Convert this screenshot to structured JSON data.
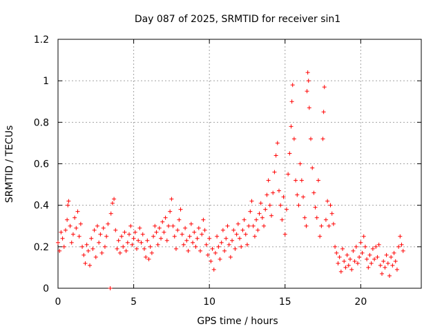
{
  "chart_data": {
    "type": "scatter",
    "title": "Day 087 of 2025, SRMTID for receiver sin1",
    "xlabel": "GPS time / hours",
    "ylabel": "SRMTID / TECUs",
    "xlim": [
      0,
      24
    ],
    "ylim": [
      0,
      1.2
    ],
    "x_ticks": [
      0,
      5,
      10,
      15,
      20
    ],
    "x_tick_labels": [
      "0",
      "5",
      "10",
      "15",
      "20"
    ],
    "y_ticks": [
      0,
      0.2,
      0.4,
      0.6,
      0.8,
      1,
      1.2
    ],
    "y_tick_labels": [
      "0",
      "0.2",
      "0.4",
      "0.6",
      "0.8",
      "1",
      "1.2"
    ],
    "grid": true,
    "marker": "plus",
    "color": "#ff0000",
    "series": [
      {
        "name": "SRMTID",
        "points": [
          [
            0.0,
            0.22
          ],
          [
            0.1,
            0.18
          ],
          [
            0.2,
            0.27
          ],
          [
            0.3,
            0.24
          ],
          [
            0.4,
            0.2
          ],
          [
            0.5,
            0.28
          ],
          [
            0.6,
            0.33
          ],
          [
            0.65,
            0.4
          ],
          [
            0.7,
            0.42
          ],
          [
            0.8,
            0.3
          ],
          [
            0.9,
            0.22
          ],
          [
            1.0,
            0.26
          ],
          [
            1.1,
            0.34
          ],
          [
            1.2,
            0.29
          ],
          [
            1.3,
            0.37
          ],
          [
            1.4,
            0.25
          ],
          [
            1.5,
            0.31
          ],
          [
            1.6,
            0.2
          ],
          [
            1.7,
            0.16
          ],
          [
            1.8,
            0.12
          ],
          [
            1.9,
            0.21
          ],
          [
            2.0,
            0.18
          ],
          [
            2.1,
            0.11
          ],
          [
            2.2,
            0.24
          ],
          [
            2.3,
            0.19
          ],
          [
            2.4,
            0.28
          ],
          [
            2.5,
            0.15
          ],
          [
            2.6,
            0.3
          ],
          [
            2.7,
            0.22
          ],
          [
            2.8,
            0.26
          ],
          [
            2.9,
            0.17
          ],
          [
            3.0,
            0.29
          ],
          [
            3.1,
            0.2
          ],
          [
            3.2,
            0.25
          ],
          [
            3.3,
            0.31
          ],
          [
            3.45,
            0.0
          ],
          [
            3.5,
            0.36
          ],
          [
            3.6,
            0.41
          ],
          [
            3.7,
            0.43
          ],
          [
            3.8,
            0.28
          ],
          [
            3.9,
            0.19
          ],
          [
            4.0,
            0.23
          ],
          [
            4.1,
            0.17
          ],
          [
            4.2,
            0.25
          ],
          [
            4.3,
            0.2
          ],
          [
            4.4,
            0.27
          ],
          [
            4.5,
            0.18
          ],
          [
            4.6,
            0.22
          ],
          [
            4.7,
            0.26
          ],
          [
            4.8,
            0.3
          ],
          [
            4.9,
            0.21
          ],
          [
            5.0,
            0.24
          ],
          [
            5.1,
            0.27
          ],
          [
            5.2,
            0.19
          ],
          [
            5.3,
            0.23
          ],
          [
            5.4,
            0.29
          ],
          [
            5.5,
            0.22
          ],
          [
            5.6,
            0.26
          ],
          [
            5.7,
            0.19
          ],
          [
            5.8,
            0.15
          ],
          [
            5.9,
            0.23
          ],
          [
            6.0,
            0.14
          ],
          [
            6.1,
            0.2
          ],
          [
            6.2,
            0.17
          ],
          [
            6.3,
            0.25
          ],
          [
            6.4,
            0.3
          ],
          [
            6.5,
            0.27
          ],
          [
            6.6,
            0.21
          ],
          [
            6.7,
            0.29
          ],
          [
            6.8,
            0.24
          ],
          [
            6.9,
            0.32
          ],
          [
            7.0,
            0.27
          ],
          [
            7.1,
            0.34
          ],
          [
            7.2,
            0.23
          ],
          [
            7.3,
            0.3
          ],
          [
            7.4,
            0.37
          ],
          [
            7.5,
            0.43
          ],
          [
            7.6,
            0.3
          ],
          [
            7.7,
            0.25
          ],
          [
            7.8,
            0.19
          ],
          [
            7.9,
            0.28
          ],
          [
            8.0,
            0.33
          ],
          [
            8.1,
            0.38
          ],
          [
            8.2,
            0.26
          ],
          [
            8.3,
            0.21
          ],
          [
            8.4,
            0.29
          ],
          [
            8.5,
            0.23
          ],
          [
            8.6,
            0.18
          ],
          [
            8.7,
            0.25
          ],
          [
            8.8,
            0.31
          ],
          [
            8.9,
            0.22
          ],
          [
            9.0,
            0.27
          ],
          [
            9.1,
            0.2
          ],
          [
            9.2,
            0.24
          ],
          [
            9.3,
            0.29
          ],
          [
            9.4,
            0.18
          ],
          [
            9.5,
            0.26
          ],
          [
            9.6,
            0.33
          ],
          [
            9.7,
            0.28
          ],
          [
            9.8,
            0.21
          ],
          [
            9.9,
            0.16
          ],
          [
            10.0,
            0.24
          ],
          [
            10.1,
            0.13
          ],
          [
            10.2,
            0.19
          ],
          [
            10.3,
            0.09
          ],
          [
            10.4,
            0.17
          ],
          [
            10.5,
            0.25
          ],
          [
            10.6,
            0.2
          ],
          [
            10.7,
            0.14
          ],
          [
            10.8,
            0.22
          ],
          [
            10.9,
            0.28
          ],
          [
            11.0,
            0.18
          ],
          [
            11.1,
            0.24
          ],
          [
            11.2,
            0.3
          ],
          [
            11.3,
            0.21
          ],
          [
            11.4,
            0.15
          ],
          [
            11.5,
            0.23
          ],
          [
            11.6,
            0.28
          ],
          [
            11.7,
            0.19
          ],
          [
            11.8,
            0.26
          ],
          [
            11.9,
            0.31
          ],
          [
            12.0,
            0.24
          ],
          [
            12.1,
            0.2
          ],
          [
            12.2,
            0.28
          ],
          [
            12.3,
            0.33
          ],
          [
            12.4,
            0.26
          ],
          [
            12.5,
            0.21
          ],
          [
            12.6,
            0.3
          ],
          [
            12.7,
            0.37
          ],
          [
            12.8,
            0.42
          ],
          [
            12.9,
            0.3
          ],
          [
            13.0,
            0.25
          ],
          [
            13.1,
            0.33
          ],
          [
            13.2,
            0.28
          ],
          [
            13.3,
            0.36
          ],
          [
            13.4,
            0.41
          ],
          [
            13.5,
            0.34
          ],
          [
            13.6,
            0.3
          ],
          [
            13.7,
            0.38
          ],
          [
            13.8,
            0.45
          ],
          [
            13.9,
            0.52
          ],
          [
            14.0,
            0.4
          ],
          [
            14.1,
            0.35
          ],
          [
            14.2,
            0.46
          ],
          [
            14.3,
            0.56
          ],
          [
            14.4,
            0.64
          ],
          [
            14.5,
            0.7
          ],
          [
            14.6,
            0.47
          ],
          [
            14.7,
            0.4
          ],
          [
            14.8,
            0.33
          ],
          [
            14.9,
            0.44
          ],
          [
            15.0,
            0.26
          ],
          [
            15.1,
            0.38
          ],
          [
            15.2,
            0.55
          ],
          [
            15.3,
            0.65
          ],
          [
            15.4,
            0.78
          ],
          [
            15.45,
            0.9
          ],
          [
            15.5,
            0.98
          ],
          [
            15.6,
            0.72
          ],
          [
            15.7,
            0.52
          ],
          [
            15.8,
            0.45
          ],
          [
            15.9,
            0.4
          ],
          [
            16.0,
            0.6
          ],
          [
            16.1,
            0.52
          ],
          [
            16.2,
            0.44
          ],
          [
            16.3,
            0.34
          ],
          [
            16.4,
            0.3
          ],
          [
            16.45,
            0.95
          ],
          [
            16.5,
            1.04
          ],
          [
            16.55,
            1.0
          ],
          [
            16.6,
            0.87
          ],
          [
            16.7,
            0.72
          ],
          [
            16.8,
            0.58
          ],
          [
            16.9,
            0.46
          ],
          [
            17.0,
            0.39
          ],
          [
            17.1,
            0.34
          ],
          [
            17.2,
            0.52
          ],
          [
            17.3,
            0.25
          ],
          [
            17.4,
            0.3
          ],
          [
            17.5,
            0.72
          ],
          [
            17.55,
            0.85
          ],
          [
            17.6,
            0.97
          ],
          [
            17.7,
            0.33
          ],
          [
            17.8,
            0.42
          ],
          [
            17.9,
            0.3
          ],
          [
            18.0,
            0.4
          ],
          [
            18.1,
            0.36
          ],
          [
            18.2,
            0.31
          ],
          [
            18.3,
            0.2
          ],
          [
            18.4,
            0.17
          ],
          [
            18.5,
            0.12
          ],
          [
            18.6,
            0.15
          ],
          [
            18.7,
            0.08
          ],
          [
            18.8,
            0.19
          ],
          [
            18.9,
            0.13
          ],
          [
            19.0,
            0.1
          ],
          [
            19.1,
            0.16
          ],
          [
            19.2,
            0.11
          ],
          [
            19.3,
            0.14
          ],
          [
            19.4,
            0.09
          ],
          [
            19.5,
            0.18
          ],
          [
            19.6,
            0.13
          ],
          [
            19.7,
            0.2
          ],
          [
            19.8,
            0.12
          ],
          [
            19.9,
            0.15
          ],
          [
            20.0,
            0.22
          ],
          [
            20.1,
            0.17
          ],
          [
            20.2,
            0.25
          ],
          [
            20.3,
            0.2
          ],
          [
            20.4,
            0.14
          ],
          [
            20.5,
            0.1
          ],
          [
            20.6,
            0.16
          ],
          [
            20.7,
            0.12
          ],
          [
            20.8,
            0.19
          ],
          [
            20.9,
            0.14
          ],
          [
            21.0,
            0.2
          ],
          [
            21.1,
            0.15
          ],
          [
            21.2,
            0.21
          ],
          [
            21.3,
            0.11
          ],
          [
            21.4,
            0.07
          ],
          [
            21.5,
            0.13
          ],
          [
            21.6,
            0.1
          ],
          [
            21.7,
            0.16
          ],
          [
            21.8,
            0.12
          ],
          [
            21.9,
            0.06
          ],
          [
            22.0,
            0.15
          ],
          [
            22.1,
            0.11
          ],
          [
            22.2,
            0.17
          ],
          [
            22.3,
            0.13
          ],
          [
            22.4,
            0.09
          ],
          [
            22.5,
            0.2
          ],
          [
            22.6,
            0.25
          ],
          [
            22.7,
            0.21
          ],
          [
            22.8,
            0.18
          ]
        ]
      }
    ]
  }
}
